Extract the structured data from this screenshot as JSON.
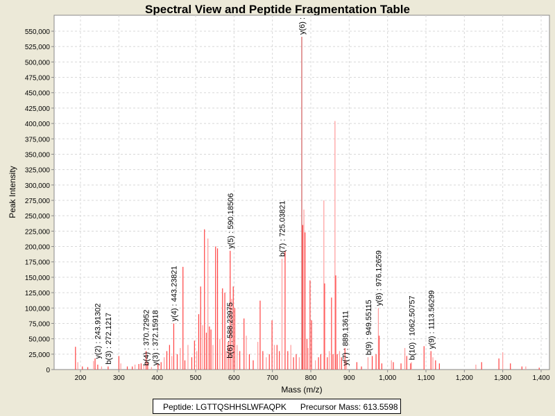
{
  "chart_data": {
    "type": "bar",
    "title": "Spectral View and Peptide Fragmentation Table",
    "xlabel": "Mass (m/z)",
    "ylabel": "Peak Intensity",
    "xlim": [
      130,
      1410
    ],
    "ylim": [
      0,
      560000
    ],
    "xticks": [
      200,
      300,
      400,
      500,
      600,
      700,
      800,
      900,
      1000,
      1100,
      1200,
      1300,
      1400
    ],
    "xtick_labels": [
      "200",
      "300",
      "400",
      "500",
      "600",
      "700",
      "800",
      "900",
      "1,000",
      "1,100",
      "1,200",
      "1,300",
      "1,400"
    ],
    "yticks": [
      0,
      25000,
      50000,
      75000,
      100000,
      125000,
      150000,
      175000,
      200000,
      225000,
      250000,
      275000,
      300000,
      325000,
      350000,
      375000,
      400000,
      425000,
      450000,
      475000,
      500000,
      525000,
      550000
    ],
    "ytick_labels": [
      "0",
      "25,000",
      "50,000",
      "75,000",
      "100,000",
      "125,000",
      "150,000",
      "175,000",
      "200,000",
      "225,000",
      "250,000",
      "275,000",
      "300,000",
      "325,000",
      "350,000",
      "375,000",
      "400,000",
      "425,000",
      "450,000",
      "475,000",
      "500,000",
      "525,000",
      "550,000"
    ],
    "grid": true,
    "colors": {
      "peak": "#ff4040",
      "peak_light": "#ff9a9a",
      "major": "#d05a5a"
    },
    "peaks": [
      [
        187,
        37000
      ],
      [
        193,
        12000
      ],
      [
        205,
        5000
      ],
      [
        219,
        4000
      ],
      [
        234,
        14000
      ],
      [
        238,
        18000
      ],
      [
        245,
        8000
      ],
      [
        255,
        5000
      ],
      [
        272,
        5000
      ],
      [
        300,
        22000
      ],
      [
        305,
        10000
      ],
      [
        322,
        5000
      ],
      [
        335,
        5000
      ],
      [
        342,
        8000
      ],
      [
        352,
        9000
      ],
      [
        358,
        10000
      ],
      [
        365,
        8000
      ],
      [
        371,
        30000
      ],
      [
        375,
        12000
      ],
      [
        385,
        4000
      ],
      [
        402,
        10000
      ],
      [
        410,
        12000
      ],
      [
        418,
        20000
      ],
      [
        425,
        30000
      ],
      [
        432,
        40000
      ],
      [
        438,
        22000
      ],
      [
        443,
        75000
      ],
      [
        452,
        25000
      ],
      [
        460,
        35000
      ],
      [
        467,
        167000
      ],
      [
        472,
        15000
      ],
      [
        480,
        40000
      ],
      [
        490,
        20000
      ],
      [
        497,
        47000
      ],
      [
        503,
        30000
      ],
      [
        508,
        90000
      ],
      [
        513,
        135000
      ],
      [
        518,
        72000
      ],
      [
        523,
        228000
      ],
      [
        528,
        60000
      ],
      [
        532,
        213000
      ],
      [
        536,
        70000
      ],
      [
        540,
        65000
      ],
      [
        545,
        40000
      ],
      [
        552,
        200000
      ],
      [
        557,
        197000
      ],
      [
        563,
        50000
      ],
      [
        570,
        132000
      ],
      [
        576,
        125000
      ],
      [
        580,
        30000
      ],
      [
        585,
        45000
      ],
      [
        590,
        193000
      ],
      [
        594,
        115000
      ],
      [
        598,
        135000
      ],
      [
        602,
        100000
      ],
      [
        608,
        40000
      ],
      [
        615,
        30000
      ],
      [
        626,
        83000
      ],
      [
        632,
        55000
      ],
      [
        640,
        25000
      ],
      [
        650,
        15000
      ],
      [
        662,
        45000
      ],
      [
        668,
        112000
      ],
      [
        675,
        30000
      ],
      [
        684,
        20000
      ],
      [
        692,
        25000
      ],
      [
        699,
        80000
      ],
      [
        705,
        40000
      ],
      [
        712,
        40000
      ],
      [
        718,
        30000
      ],
      [
        725,
        180000
      ],
      [
        733,
        193000
      ],
      [
        740,
        30000
      ],
      [
        748,
        40000
      ],
      [
        755,
        20000
      ],
      [
        762,
        25000
      ],
      [
        770,
        20000
      ],
      [
        776.5,
        541000
      ],
      [
        779,
        235000
      ],
      [
        782,
        260000
      ],
      [
        785,
        223000
      ],
      [
        790,
        50000
      ],
      [
        793,
        35000
      ],
      [
        798,
        145000
      ],
      [
        802,
        80000
      ],
      [
        812,
        15000
      ],
      [
        820,
        20000
      ],
      [
        826,
        25000
      ],
      [
        834,
        275000
      ],
      [
        836,
        140000
      ],
      [
        843,
        20000
      ],
      [
        848,
        30000
      ],
      [
        854,
        117000
      ],
      [
        858,
        25000
      ],
      [
        863,
        404000
      ],
      [
        865,
        153000
      ],
      [
        869,
        25000
      ],
      [
        875,
        30000
      ],
      [
        880,
        20000
      ],
      [
        889,
        35000
      ],
      [
        893,
        15000
      ],
      [
        920,
        12000
      ],
      [
        932,
        5000
      ],
      [
        949,
        20000
      ],
      [
        960,
        22000
      ],
      [
        970,
        25000
      ],
      [
        976,
        100000
      ],
      [
        978,
        55000
      ],
      [
        985,
        10000
      ],
      [
        1010,
        15000
      ],
      [
        1015,
        12000
      ],
      [
        1035,
        10000
      ],
      [
        1045,
        35000
      ],
      [
        1050,
        22000
      ],
      [
        1060,
        10000
      ],
      [
        1062,
        12000
      ],
      [
        1095,
        38000
      ],
      [
        1113,
        30000
      ],
      [
        1118,
        20000
      ],
      [
        1125,
        15000
      ],
      [
        1135,
        10000
      ],
      [
        1230,
        8000
      ],
      [
        1245,
        12000
      ],
      [
        1290,
        18000
      ],
      [
        1300,
        28000
      ],
      [
        1320,
        10000
      ],
      [
        1350,
        5000
      ],
      [
        1360,
        5000
      ],
      [
        1395,
        3000
      ]
    ],
    "annotations": [
      {
        "label": "y(2) : 243.91302",
        "mass": 243.9,
        "intensity": 14000
      },
      {
        "label": "b(3) : 272.1217",
        "mass": 272.1,
        "intensity": 5000
      },
      {
        "label": "b(4) : 370.72952",
        "mass": 370.7,
        "intensity": 3000
      },
      {
        "label": "y(3) : 372.15918",
        "mass": 372.2,
        "intensity": 3000
      },
      {
        "label": "y(4) : 443.23821",
        "mass": 443.2,
        "intensity": 75000
      },
      {
        "label": "b(6) : 588.23975",
        "mass": 588.2,
        "intensity": 15000
      },
      {
        "label": "y(5) : 590.18506",
        "mass": 590.2,
        "intensity": 193000
      },
      {
        "label": "b(7) : 725.03821",
        "mass": 725.0,
        "intensity": 180000
      },
      {
        "label": "y(6) :",
        "mass": 776.5,
        "intensity": 541000
      },
      {
        "label": "y(7) : 889.13611",
        "mass": 889.1,
        "intensity": 3000
      },
      {
        "label": "b(9) : 949.55115",
        "mass": 949.6,
        "intensity": 20000
      },
      {
        "label": "y(8) : 976.12659",
        "mass": 976.1,
        "intensity": 100000
      },
      {
        "label": "b(10) : 1062.50757",
        "mass": 1062.5,
        "intensity": 12000
      },
      {
        "label": "y(9) : 1113.56299",
        "mass": 1113.6,
        "intensity": 30000
      }
    ]
  },
  "footer": {
    "peptide": "Peptide: LGTTQSHHSLWFAQPK",
    "precursor": "Precursor Mass: 613.5598"
  }
}
